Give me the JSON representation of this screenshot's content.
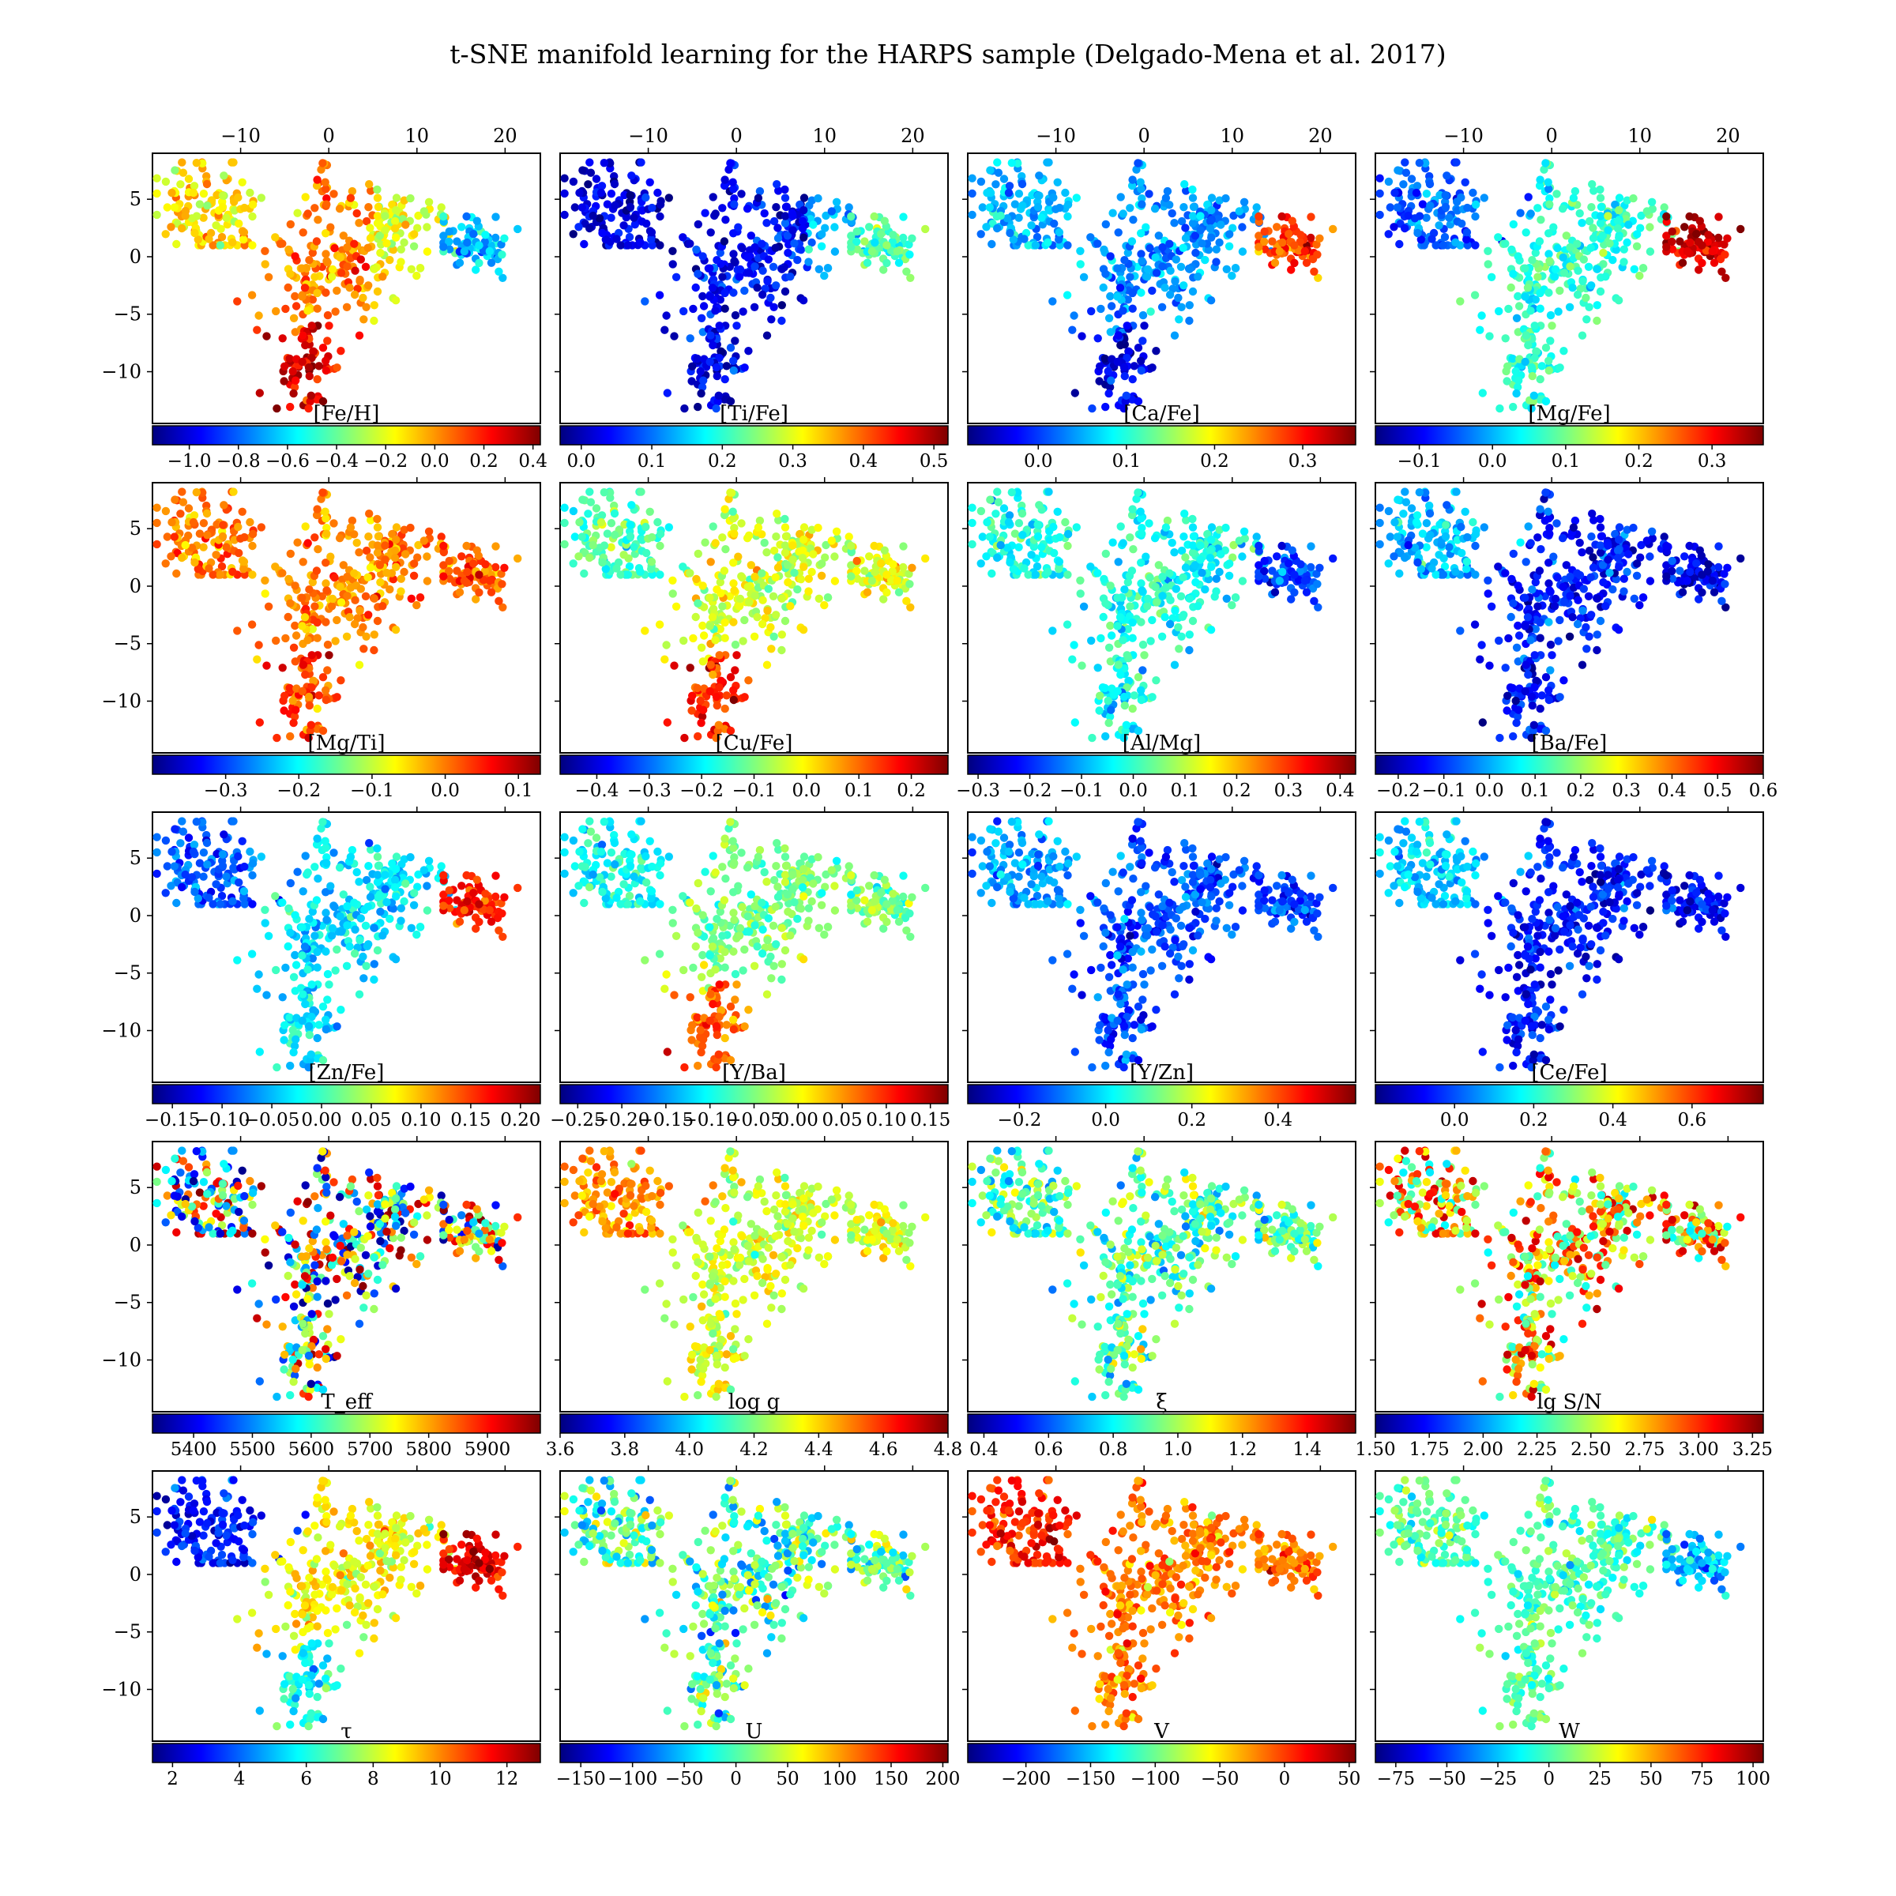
{
  "figure": {
    "title": "t-SNE manifold learning for the HARPS sample (Delgado-Mena et al. 2017)"
  },
  "chart_data": {
    "type": "scatter",
    "x_ticks": [
      -10,
      0,
      10,
      20
    ],
    "y_ticks": [
      5,
      0,
      -5,
      -10
    ],
    "xlim": [
      -20,
      24
    ],
    "ylim": [
      -14.5,
      9
    ],
    "n_points": 520,
    "colormap": "jet",
    "colormap_stops": [
      "#00007f",
      "#0000ff",
      "#007fff",
      "#00ffff",
      "#7fff7f",
      "#ffff00",
      "#ff7f00",
      "#ff0000",
      "#7f0000"
    ],
    "marker_color_note": "each point colored by the panel variable",
    "panels": [
      {
        "label": "[Fe/H]",
        "cmin": -1.15,
        "cmax": 0.43,
        "ticks": [
          "−1.0",
          "−0.8",
          "−0.6",
          "−0.4",
          "−0.2",
          "0.0",
          "0.2",
          "0.4"
        ],
        "tick_values": [
          -1.0,
          -0.8,
          -0.6,
          -0.4,
          -0.2,
          0.0,
          0.2,
          0.4
        ]
      },
      {
        "label": "[Ti/Fe]",
        "cmin": -0.03,
        "cmax": 0.52,
        "ticks": [
          "0.0",
          "0.1",
          "0.2",
          "0.3",
          "0.4",
          "0.5"
        ],
        "tick_values": [
          0.0,
          0.1,
          0.2,
          0.3,
          0.4,
          0.5
        ]
      },
      {
        "label": "[Ca/Fe]",
        "cmin": -0.08,
        "cmax": 0.36,
        "ticks": [
          "0.0",
          "0.1",
          "0.2",
          "0.3"
        ],
        "tick_values": [
          0.0,
          0.1,
          0.2,
          0.3
        ]
      },
      {
        "label": "[Mg/Fe]",
        "cmin": -0.16,
        "cmax": 0.37,
        "ticks": [
          "−0.1",
          "0.0",
          "0.1",
          "0.2",
          "0.3"
        ],
        "tick_values": [
          -0.1,
          0.0,
          0.1,
          0.2,
          0.3
        ]
      },
      {
        "label": "[Mg/Ti]",
        "cmin": -0.4,
        "cmax": 0.13,
        "ticks": [
          "−0.3",
          "−0.2",
          "−0.1",
          "0.0",
          "0.1"
        ],
        "tick_values": [
          -0.3,
          -0.2,
          -0.1,
          0.0,
          0.1
        ]
      },
      {
        "label": "[Cu/Fe]",
        "cmin": -0.47,
        "cmax": 0.27,
        "ticks": [
          "−0.4",
          "−0.3",
          "−0.2",
          "−0.1",
          "0.0",
          "0.1",
          "0.2"
        ],
        "tick_values": [
          -0.4,
          -0.3,
          -0.2,
          -0.1,
          0.0,
          0.1,
          0.2
        ]
      },
      {
        "label": "[Al/Mg]",
        "cmin": -0.32,
        "cmax": 0.43,
        "ticks": [
          "−0.3",
          "−0.2",
          "−0.1",
          "0.0",
          "0.1",
          "0.2",
          "0.3",
          "0.4"
        ],
        "tick_values": [
          -0.3,
          -0.2,
          -0.1,
          0.0,
          0.1,
          0.2,
          0.3,
          0.4
        ]
      },
      {
        "label": "[Ba/Fe]",
        "cmin": -0.25,
        "cmax": 0.6,
        "ticks": [
          "−0.2",
          "−0.1",
          "0.0",
          "0.1",
          "0.2",
          "0.3",
          "0.4",
          "0.5",
          "0.6"
        ],
        "tick_values": [
          -0.2,
          -0.1,
          0.0,
          0.1,
          0.2,
          0.3,
          0.4,
          0.5,
          0.6
        ]
      },
      {
        "label": "[Zn/Fe]",
        "cmin": -0.17,
        "cmax": 0.22,
        "ticks": [
          "−0.15",
          "−0.10",
          "−0.05",
          "0.00",
          "0.05",
          "0.10",
          "0.15",
          "0.20"
        ],
        "tick_values": [
          -0.15,
          -0.1,
          -0.05,
          0.0,
          0.05,
          0.1,
          0.15,
          0.2
        ]
      },
      {
        "label": "[Y/Ba]",
        "cmin": -0.27,
        "cmax": 0.17,
        "ticks": [
          "−0.25",
          "−0.20",
          "−0.15",
          "−0.10",
          "−0.05",
          "0.00",
          "0.05",
          "0.10",
          "0.15"
        ],
        "tick_values": [
          -0.25,
          -0.2,
          -0.15,
          -0.1,
          -0.05,
          0.0,
          0.05,
          0.1,
          0.15
        ]
      },
      {
        "label": "[Y/Zn]",
        "cmin": -0.32,
        "cmax": 0.58,
        "ticks": [
          "−0.2",
          "0.0",
          "0.2",
          "0.4"
        ],
        "tick_values": [
          -0.2,
          0.0,
          0.2,
          0.4
        ]
      },
      {
        "label": "[Ce/Fe]",
        "cmin": -0.2,
        "cmax": 0.78,
        "ticks": [
          "0.0",
          "0.2",
          "0.4",
          "0.6"
        ],
        "tick_values": [
          0.0,
          0.2,
          0.4,
          0.6
        ]
      },
      {
        "label": "T_eff",
        "cmin": 5330,
        "cmax": 5990,
        "ticks": [
          "5400",
          "5500",
          "5600",
          "5700",
          "5800",
          "5900"
        ],
        "tick_values": [
          5400,
          5500,
          5600,
          5700,
          5800,
          5900
        ]
      },
      {
        "label": "log g",
        "cmin": 3.6,
        "cmax": 4.8,
        "ticks": [
          "3.6",
          "3.8",
          "4.0",
          "4.2",
          "4.4",
          "4.6",
          "4.8"
        ],
        "tick_values": [
          3.6,
          3.8,
          4.0,
          4.2,
          4.4,
          4.6,
          4.8
        ]
      },
      {
        "label": "ξ",
        "cmin": 0.35,
        "cmax": 1.55,
        "ticks": [
          "0.4",
          "0.6",
          "0.8",
          "1.0",
          "1.2",
          "1.4"
        ],
        "tick_values": [
          0.4,
          0.6,
          0.8,
          1.0,
          1.2,
          1.4
        ]
      },
      {
        "label": "lg S/N",
        "cmin": 1.5,
        "cmax": 3.3,
        "ticks": [
          "1.50",
          "1.75",
          "2.00",
          "2.25",
          "2.50",
          "2.75",
          "3.00",
          "3.25"
        ],
        "tick_values": [
          1.5,
          1.75,
          2.0,
          2.25,
          2.5,
          2.75,
          3.0,
          3.25
        ]
      },
      {
        "label": "τ",
        "cmin": 1.4,
        "cmax": 13.0,
        "ticks": [
          "2",
          "4",
          "6",
          "8",
          "10",
          "12"
        ],
        "tick_values": [
          2,
          4,
          6,
          8,
          10,
          12
        ]
      },
      {
        "label": "U",
        "cmin": -170,
        "cmax": 205,
        "ticks": [
          "−150",
          "−100",
          "−50",
          "0",
          "50",
          "100",
          "150",
          "200"
        ],
        "tick_values": [
          -150,
          -100,
          -50,
          0,
          50,
          100,
          150,
          200
        ]
      },
      {
        "label": "V",
        "cmin": -245,
        "cmax": 55,
        "ticks": [
          "−200",
          "−150",
          "−100",
          "−50",
          "0",
          "50"
        ],
        "tick_values": [
          -200,
          -150,
          -100,
          -50,
          0,
          50
        ]
      },
      {
        "label": "W",
        "cmin": -85,
        "cmax": 105,
        "ticks": [
          "−75",
          "−50",
          "−25",
          "0",
          "25",
          "50",
          "75",
          "100"
        ],
        "tick_values": [
          -75,
          -50,
          -25,
          0,
          25,
          50,
          75,
          100
        ]
      }
    ]
  }
}
